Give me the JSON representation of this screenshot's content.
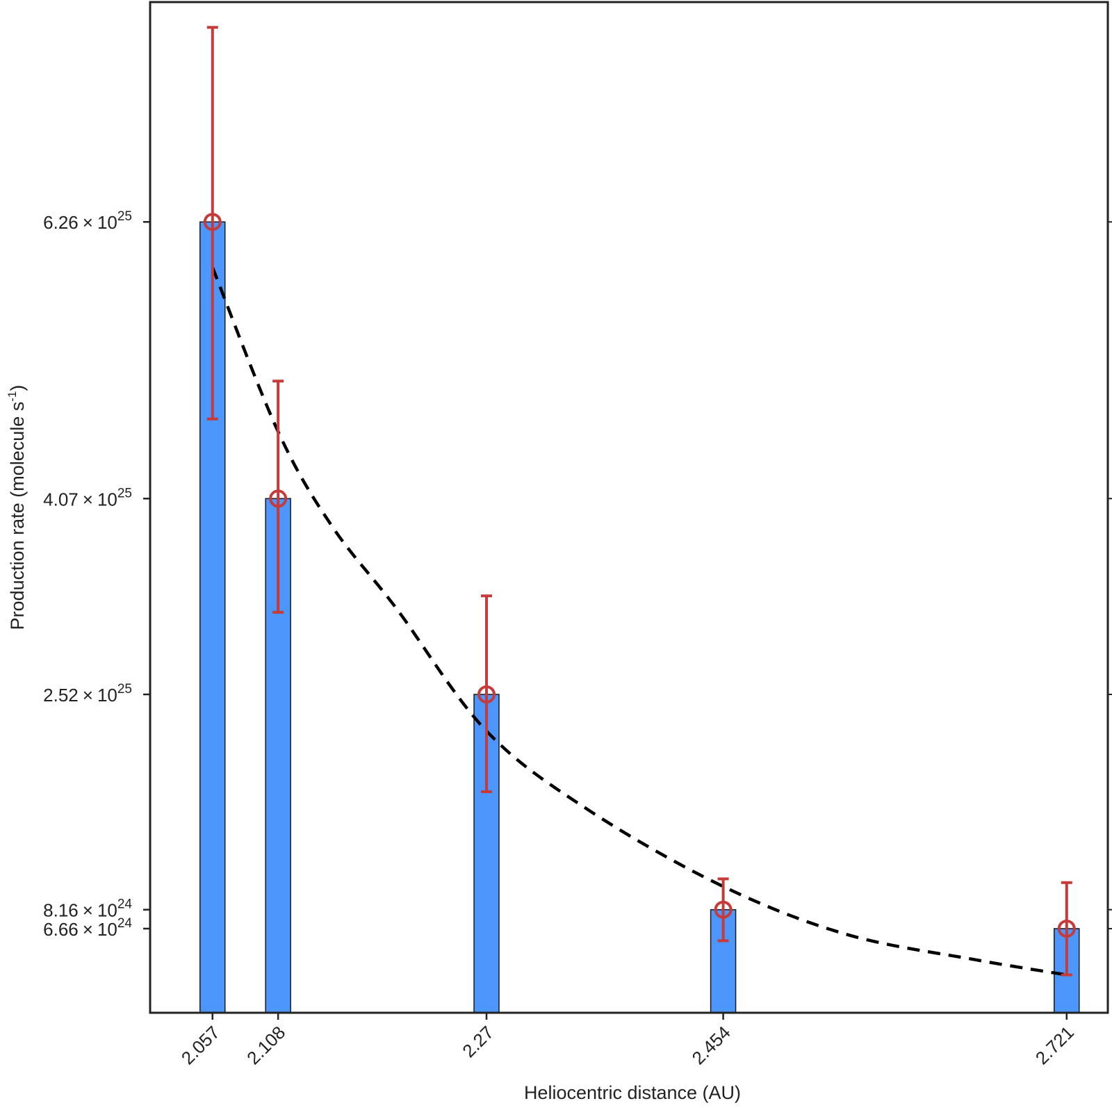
{
  "chart_data": {
    "type": "bar",
    "title": "",
    "xlabel": "Heliocentric distance (AU)",
    "ylabel": {
      "main": "Production rate (molecule s",
      "sup": "-1",
      "close": ")"
    },
    "x_tick_labels": [
      "2.057",
      "2.108",
      "2.27",
      "2.454",
      "2.721"
    ],
    "y_ticks": [
      {
        "value": 6.26e+25,
        "mantissa": "6.26",
        "times": "×",
        "base": "10",
        "exponent": "25"
      },
      {
        "value": 4.07e+25,
        "mantissa": "4.07",
        "times": "×",
        "base": "10",
        "exponent": "25"
      },
      {
        "value": 2.52e+25,
        "mantissa": "2.52",
        "times": "×",
        "base": "10",
        "exponent": "25"
      },
      {
        "value": 8.16e+24,
        "mantissa": "8.16",
        "times": "×",
        "base": "10",
        "exponent": "24"
      },
      {
        "value": 6.66e+24,
        "mantissa": "6.66",
        "times": "×",
        "base": "10",
        "exponent": "24"
      }
    ],
    "x": [
      2.057,
      2.108,
      2.27,
      2.454,
      2.721
    ],
    "values": [
      6.26e+25,
      4.07e+25,
      2.52e+25,
      8.16e+24,
      6.66e+24
    ],
    "error_upper": [
      7.8e+25,
      5e+25,
      3.3e+25,
      1.06e+25,
      1.03e+25
    ],
    "error_lower": [
      4.7e+25,
      3.17e+25,
      1.75e+25,
      5.7e+24,
      3e+24
    ],
    "fit_curve": {
      "style": "dashed",
      "points": [
        [
          2.057,
          5.9e+25
        ],
        [
          2.108,
          4.6e+25
        ],
        [
          2.15,
          3.85e+25
        ],
        [
          2.2,
          3.2e+25
        ],
        [
          2.27,
          2.23e+25
        ],
        [
          2.35,
          1.6e+25
        ],
        [
          2.454,
          1e+25
        ],
        [
          2.55,
          6.2e+24
        ],
        [
          2.65,
          4.2e+24
        ],
        [
          2.721,
          3e+24
        ]
      ]
    },
    "xlim": [
      2.0085,
      2.753
    ],
    "ylim": [
      0,
      8e+25
    ],
    "grid": false,
    "legend": "none",
    "colors": {
      "bar_fill": "#4d96fb",
      "bar_edge": "#1a1a1a",
      "error": "#c63a3a",
      "fit": "#000000",
      "axis": "#222222"
    }
  }
}
